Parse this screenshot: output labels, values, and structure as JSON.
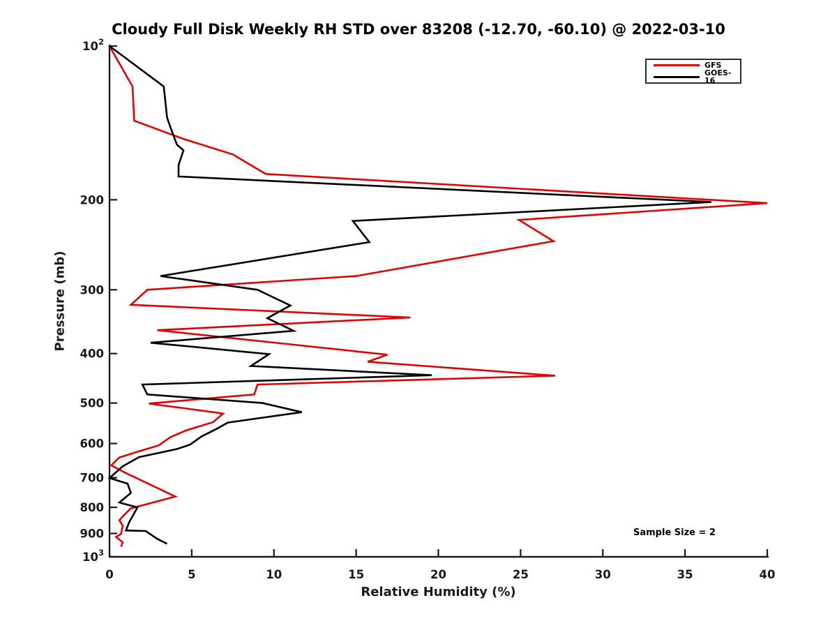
{
  "title": "Cloudy Full Disk Weekly RH STD over 83208 (-12.70, -60.10) @ 2022-03-10",
  "annotation": "Sample Size = 2",
  "legend": {
    "entries": [
      {
        "label": "GFS",
        "color": "#e60000"
      },
      {
        "label": "GOES-16",
        "color": "#000000"
      }
    ]
  },
  "chart_data": {
    "type": "line",
    "title": "Cloudy Full Disk Weekly RH STD over 83208 (-12.70, -60.10) @ 2022-03-10",
    "xlabel": "Relative Humidity (%)",
    "ylabel": "Pressure (mb)",
    "grid": false,
    "legend_position": "upper right",
    "x_axis": {
      "min": 0,
      "max": 40,
      "ticks": [
        0,
        5,
        10,
        15,
        20,
        25,
        30,
        35,
        40
      ]
    },
    "y_axis": {
      "scale": "log",
      "min": 100,
      "max": 1000,
      "direction": "inverted (100 mb at top)",
      "ticks": [
        {
          "p": 100,
          "label": "10",
          "sup": "2"
        },
        {
          "p": 200,
          "label": "200"
        },
        {
          "p": 300,
          "label": "300"
        },
        {
          "p": 400,
          "label": "400"
        },
        {
          "p": 500,
          "label": "500"
        },
        {
          "p": 600,
          "label": "600"
        },
        {
          "p": 700,
          "label": "700"
        },
        {
          "p": 800,
          "label": "800"
        },
        {
          "p": 900,
          "label": "900"
        },
        {
          "p": 1000,
          "label": "10",
          "sup": "3"
        }
      ]
    },
    "series": [
      {
        "name": "GFS",
        "color": "#e60000",
        "width": 2.6,
        "points_format": [
          "rh_percent",
          "pressure_mb"
        ],
        "points": [
          [
            0.0,
            100
          ],
          [
            1.4,
            120
          ],
          [
            1.5,
            140
          ],
          [
            4.5,
            152
          ],
          [
            7.5,
            163
          ],
          [
            9.5,
            178
          ],
          [
            40.0,
            203
          ],
          [
            24.9,
            219
          ],
          [
            27.0,
            241
          ],
          [
            15.0,
            282
          ],
          [
            2.3,
            300
          ],
          [
            1.3,
            321
          ],
          [
            18.3,
            340
          ],
          [
            2.9,
            360
          ],
          [
            16.9,
            402
          ],
          [
            15.7,
            415
          ],
          [
            27.1,
            442
          ],
          [
            9.0,
            460
          ],
          [
            8.8,
            481
          ],
          [
            2.4,
            501
          ],
          [
            6.9,
            524
          ],
          [
            6.3,
            545
          ],
          [
            4.7,
            565
          ],
          [
            3.7,
            583
          ],
          [
            3.0,
            605
          ],
          [
            1.6,
            624
          ],
          [
            0.6,
            639
          ],
          [
            0.1,
            662
          ],
          [
            0.9,
            683
          ],
          [
            4.0,
            762
          ],
          [
            1.3,
            804
          ],
          [
            0.9,
            827
          ],
          [
            0.6,
            848
          ],
          [
            0.8,
            869
          ],
          [
            0.7,
            902
          ],
          [
            0.4,
            914
          ],
          [
            0.8,
            937
          ],
          [
            0.7,
            955
          ]
        ]
      },
      {
        "name": "GOES-16",
        "color": "#000000",
        "width": 2.6,
        "points_format": [
          "rh_percent",
          "pressure_mb"
        ],
        "points": [
          [
            0.0,
            100
          ],
          [
            3.3,
            120
          ],
          [
            3.5,
            138
          ],
          [
            3.7,
            144
          ],
          [
            4.1,
            156
          ],
          [
            4.5,
            160
          ],
          [
            4.2,
            171
          ],
          [
            4.2,
            180
          ],
          [
            36.6,
            202
          ],
          [
            14.8,
            220
          ],
          [
            15.8,
            242
          ],
          [
            3.1,
            282
          ],
          [
            9.0,
            300
          ],
          [
            11.0,
            322
          ],
          [
            9.6,
            341
          ],
          [
            11.2,
            361
          ],
          [
            2.5,
            381
          ],
          [
            9.7,
            401
          ],
          [
            8.6,
            423
          ],
          [
            19.6,
            441
          ],
          [
            2.0,
            460
          ],
          [
            2.3,
            481
          ],
          [
            9.3,
            500
          ],
          [
            11.7,
            521
          ],
          [
            7.2,
            546
          ],
          [
            6.5,
            562
          ],
          [
            5.6,
            581
          ],
          [
            4.9,
            603
          ],
          [
            4.1,
            615
          ],
          [
            1.8,
            638
          ],
          [
            0.8,
            665
          ],
          [
            0.0,
            701
          ],
          [
            1.1,
            719
          ],
          [
            1.3,
            750
          ],
          [
            0.6,
            783
          ],
          [
            1.7,
            800
          ],
          [
            1.2,
            855
          ],
          [
            1.0,
            888
          ],
          [
            2.2,
            890
          ],
          [
            2.9,
            922
          ],
          [
            3.5,
            943
          ]
        ]
      }
    ],
    "annotations": [
      {
        "text": "Sample Size = 2",
        "approx_position": {
          "rh": 34.4,
          "p": 880
        }
      }
    ]
  }
}
